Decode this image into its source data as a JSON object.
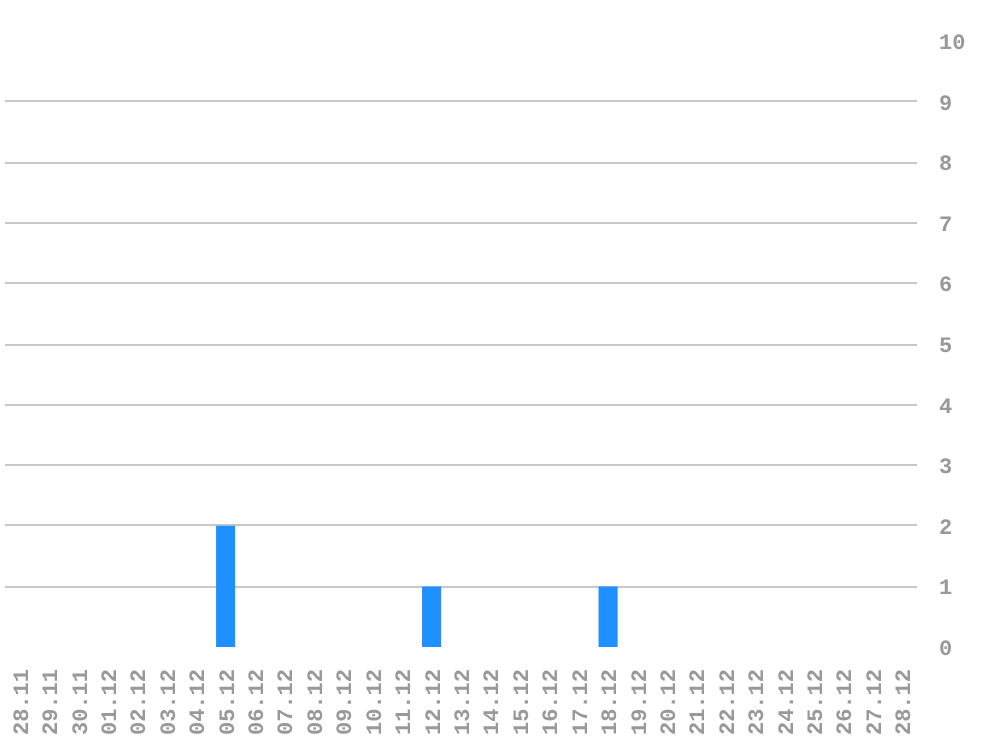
{
  "chart_data": {
    "type": "bar",
    "categories": [
      "28.11",
      "29.11",
      "30.11",
      "01.12",
      "02.12",
      "03.12",
      "04.12",
      "05.12",
      "06.12",
      "07.12",
      "08.12",
      "09.12",
      "10.12",
      "11.12",
      "12.12",
      "13.12",
      "14.12",
      "15.12",
      "16.12",
      "17.12",
      "18.12",
      "19.12",
      "20.12",
      "21.12",
      "22.12",
      "23.12",
      "24.12",
      "25.12",
      "26.12",
      "27.12",
      "28.12"
    ],
    "values": [
      0,
      0,
      0,
      0,
      0,
      0,
      0,
      2,
      0,
      0,
      0,
      0,
      0,
      0,
      1,
      0,
      0,
      0,
      0,
      0,
      1,
      0,
      0,
      0,
      0,
      0,
      0,
      0,
      0,
      0,
      0
    ],
    "color": "#1e90ff",
    "ylim": [
      0,
      10
    ],
    "yticks": [
      0,
      1,
      2,
      3,
      4,
      5,
      6,
      7,
      8,
      9,
      10
    ],
    "grid": "y"
  }
}
